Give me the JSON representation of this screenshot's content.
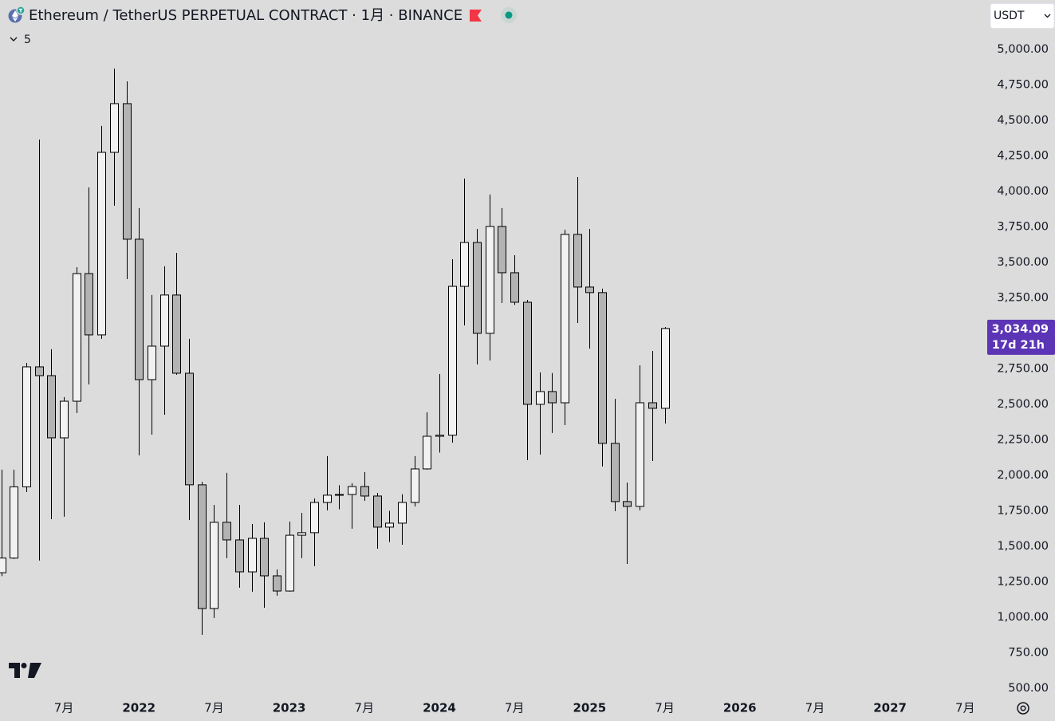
{
  "chart_data": {
    "type": "candlestick",
    "title": "Ethereum / TetherUS PERPETUAL CONTRACT · 1月 · BINANCE",
    "indicator_count": "5",
    "currency": "USDT",
    "last_price_label": "3,034.09",
    "countdown": "17d 21h",
    "up_color": "#f2f2f2",
    "down_color": "#b3b3b3",
    "border_color": "#000000",
    "price_label_color": "#5b35b5",
    "open": [
      1314,
      1417,
      1919,
      2764,
      2702,
      2264,
      2522,
      3421,
      2989,
      4275,
      4618,
      3663,
      2674,
      2910,
      3270,
      2719,
      1933,
      1062,
      1669,
      1545,
      1320,
      1556,
      1292,
      1185,
      1578,
      1596,
      1809,
      1860,
      1865,
      1921,
      1854,
      1635,
      1663,
      1809,
      2045,
      2275,
      2283,
      3331,
      3640,
      3000,
      3753,
      3427,
      3219,
      2500,
      2590,
      2511,
      3697,
      3326,
      3287,
      2225,
      1815,
      1781,
      2511,
      2472
    ],
    "high": [
      2040,
      2040,
      2792,
      4365,
      2888,
      2551,
      3466,
      4028,
      4461,
      4865,
      4775,
      3882,
      3270,
      3472,
      3567,
      2961,
      1955,
      1792,
      2017,
      1792,
      1657,
      1669,
      1337,
      1674,
      1736,
      1837,
      2135,
      1930,
      1944,
      2022,
      1876,
      1750,
      1866,
      2135,
      2444,
      2713,
      3522,
      4090,
      3736,
      3978,
      3882,
      3550,
      3236,
      2725,
      2720,
      3730,
      4101,
      3736,
      3315,
      2539,
      1949,
      2775,
      2876,
      3045
    ],
    "low": [
      1290,
      1410,
      1882,
      1400,
      1691,
      1708,
      2438,
      2640,
      2961,
      3899,
      3382,
      2140,
      2286,
      2427,
      2708,
      1686,
      876,
      995,
      1416,
      1208,
      1180,
      1067,
      1152,
      1180,
      1416,
      1360,
      1753,
      1760,
      1624,
      1820,
      1483,
      1530,
      1511,
      1781,
      2040,
      2160,
      2230,
      3056,
      2781,
      2809,
      3213,
      3200,
      2107,
      2146,
      2298,
      2354,
      3073,
      2893,
      2062,
      1747,
      1376,
      1753,
      2101,
      2365
    ],
    "close": [
      1417,
      1919,
      2764,
      2702,
      2264,
      2522,
      3421,
      2989,
      4275,
      4618,
      3663,
      2674,
      2910,
      3270,
      2719,
      1933,
      1062,
      1669,
      1545,
      1320,
      1556,
      1292,
      1185,
      1578,
      1596,
      1809,
      1860,
      1865,
      1921,
      1854,
      1635,
      1663,
      1809,
      2045,
      2275,
      2283,
      3331,
      3640,
      3000,
      3753,
      3427,
      3219,
      2500,
      2590,
      2511,
      3697,
      3326,
      3287,
      2225,
      1815,
      1781,
      2511,
      2472,
      3034.09
    ],
    "xlim": [
      -0.1,
      78.7
    ],
    "xticks": [
      {
        "value": 5,
        "label": "7月"
      },
      {
        "value": 11,
        "label": "2022"
      },
      {
        "value": 17,
        "label": "7月"
      },
      {
        "value": 23,
        "label": "2023"
      },
      {
        "value": 29,
        "label": "7月"
      },
      {
        "value": 35,
        "label": "2024"
      },
      {
        "value": 41,
        "label": "7月"
      },
      {
        "value": 47,
        "label": "2025"
      },
      {
        "value": 53,
        "label": "7月"
      },
      {
        "value": 59,
        "label": "2026"
      },
      {
        "value": 65,
        "label": "7月"
      },
      {
        "value": 71,
        "label": "2027"
      },
      {
        "value": 77,
        "label": "7月"
      }
    ],
    "ylim": [
      438,
      5348
    ],
    "yticks": [
      {
        "value": 500,
        "label": "500.00"
      },
      {
        "value": 750,
        "label": "750.00"
      },
      {
        "value": 1000,
        "label": "1,000.00"
      },
      {
        "value": 1250,
        "label": "1,250.00"
      },
      {
        "value": 1500,
        "label": "1,500.00"
      },
      {
        "value": 1750,
        "label": "1,750.00"
      },
      {
        "value": 2000,
        "label": "2,000.00"
      },
      {
        "value": 2250,
        "label": "2,250.00"
      },
      {
        "value": 2500,
        "label": "2,500.00"
      },
      {
        "value": 2750,
        "label": "2,750.00"
      },
      {
        "value": 3000,
        "label": "3,000.00"
      },
      {
        "value": 3250,
        "label": "3,250.00"
      },
      {
        "value": 3500,
        "label": "3,500.00"
      },
      {
        "value": 3750,
        "label": "3,750.00"
      },
      {
        "value": 4000,
        "label": "4,000.00"
      },
      {
        "value": 4250,
        "label": "4,250.00"
      },
      {
        "value": 4500,
        "label": "4,500.00"
      },
      {
        "value": 4750,
        "label": "4,750.00"
      },
      {
        "value": 5000,
        "label": "5,000.00"
      }
    ]
  }
}
